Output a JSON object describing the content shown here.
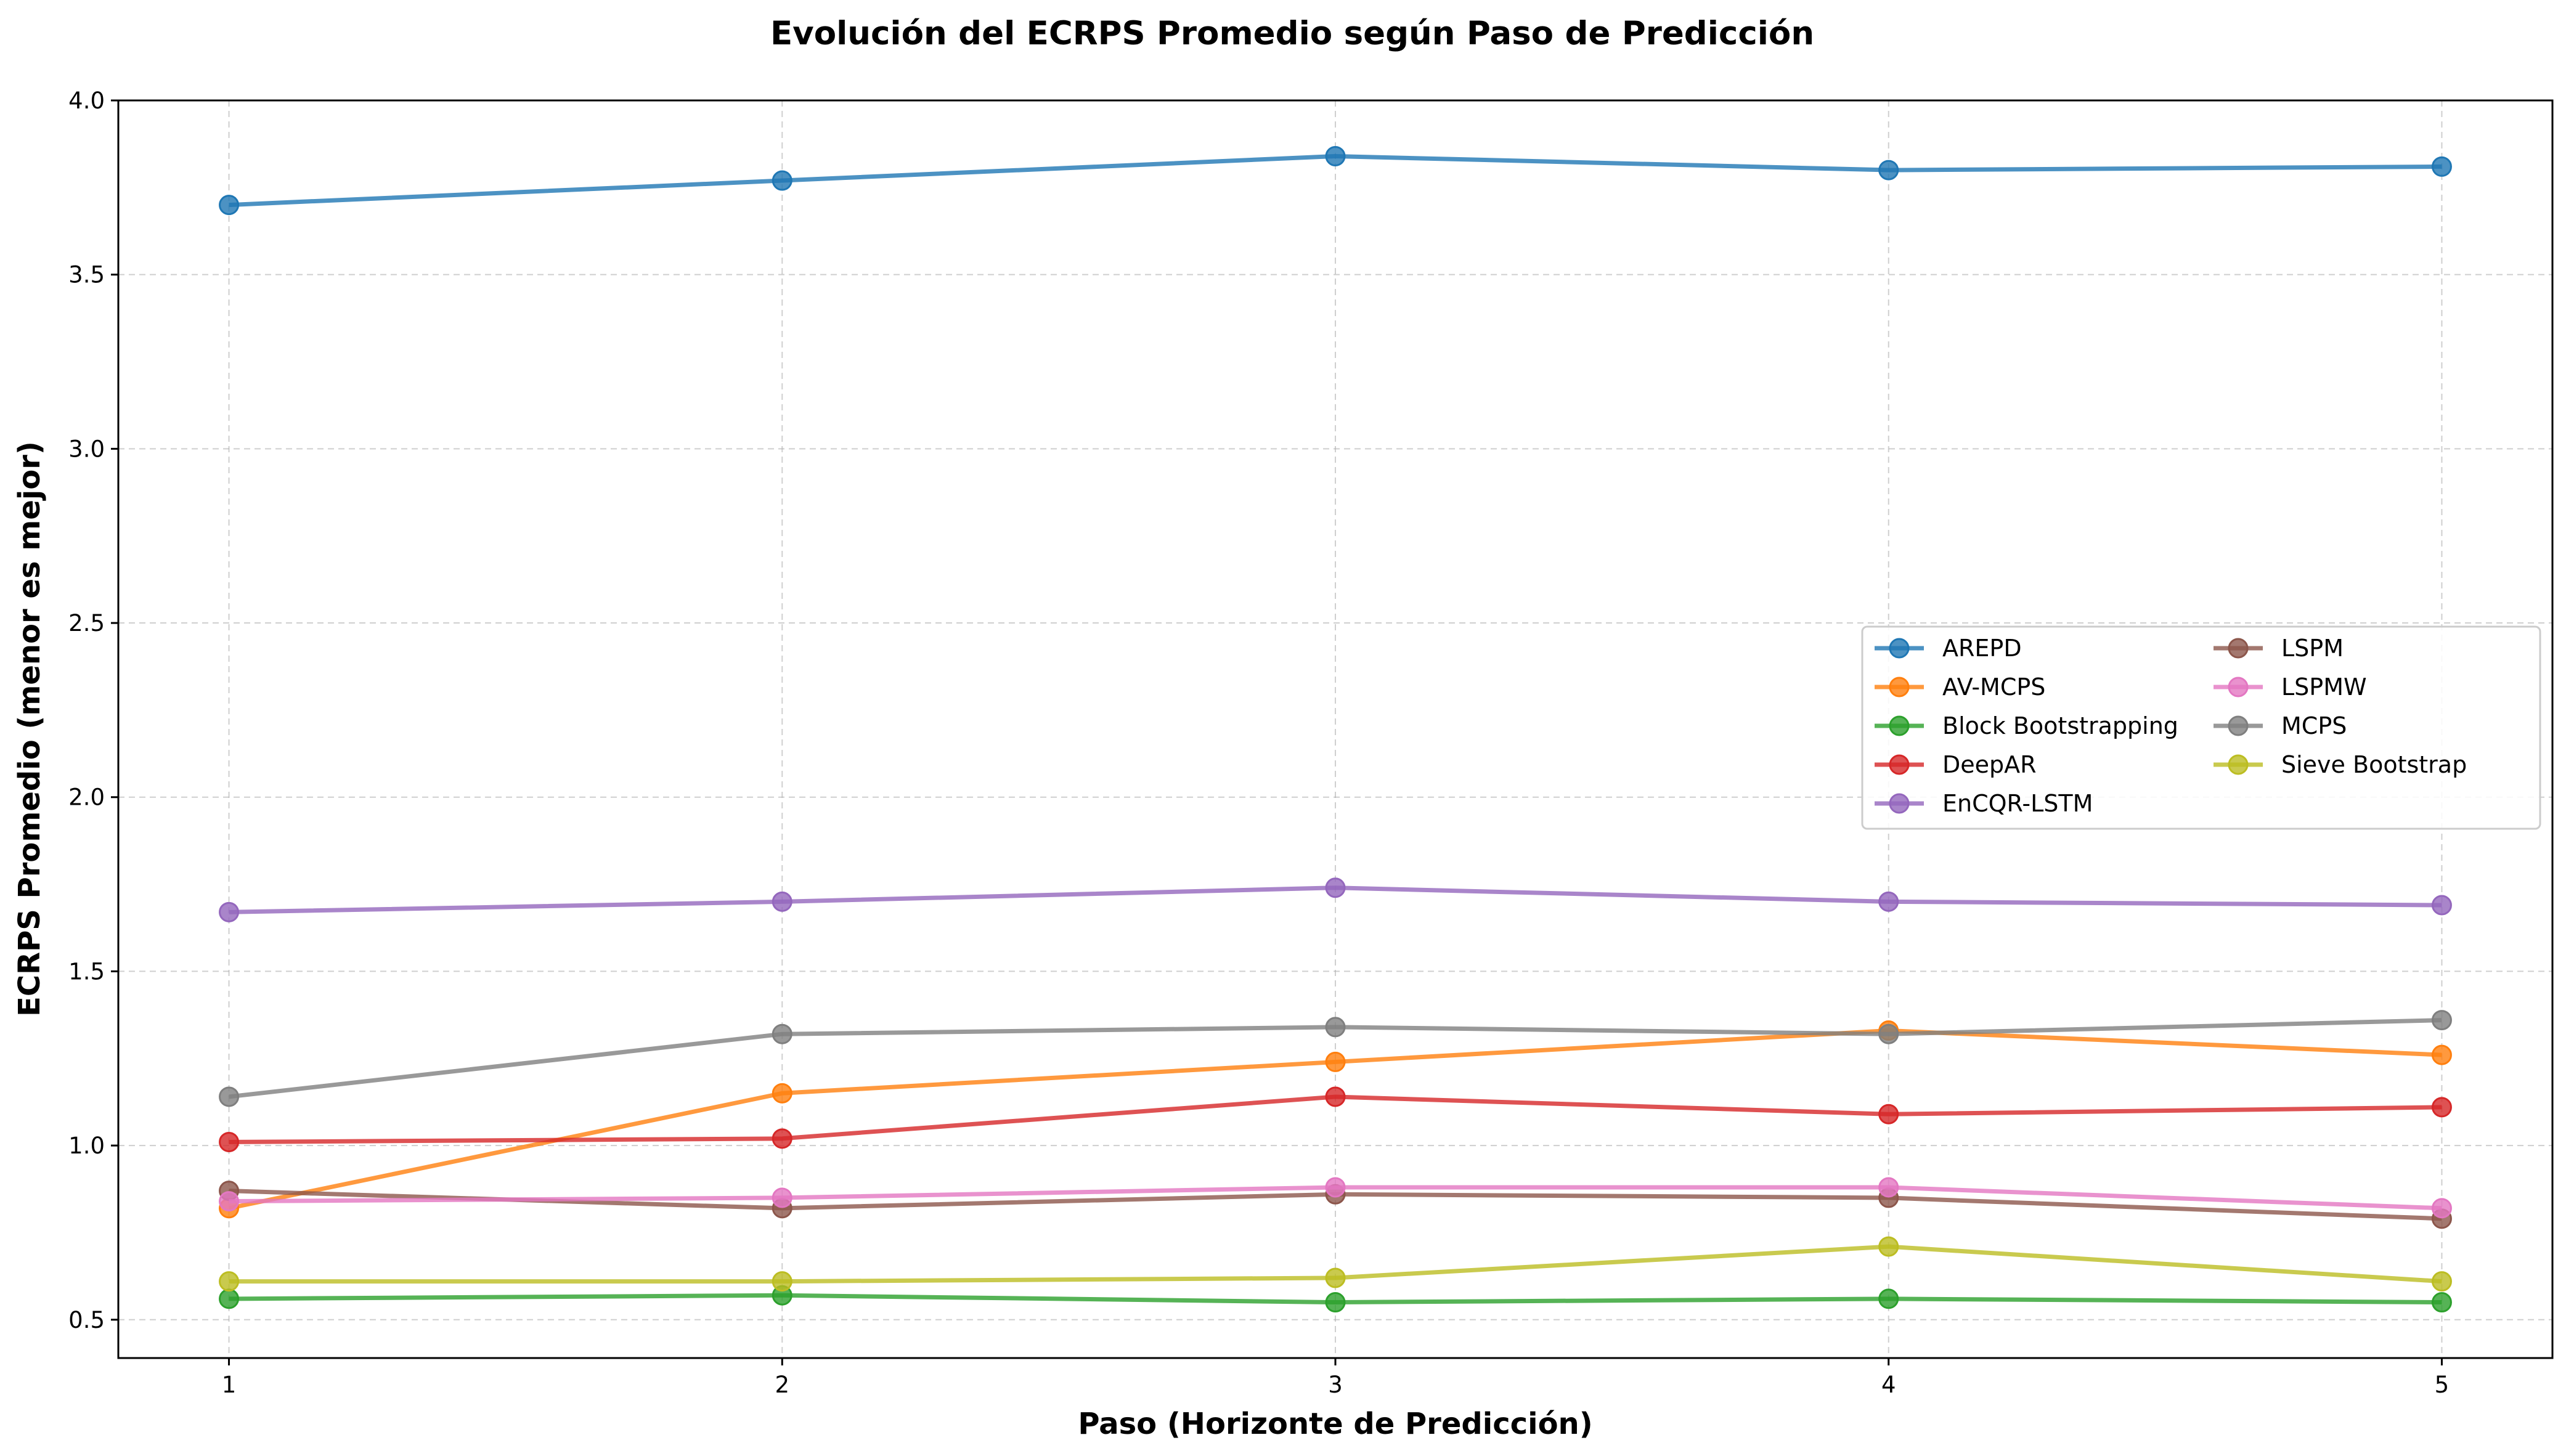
{
  "chart_data": {
    "type": "line",
    "title": "Evolución del ECRPS Promedio según Paso de Predicción",
    "xlabel": "Paso (Horizonte de Predicción)",
    "ylabel": "ECRPS Promedio (menor es mejor)",
    "x": [
      1,
      2,
      3,
      4,
      5
    ],
    "x_ticks": [
      "1",
      "2",
      "3",
      "4",
      "5"
    ],
    "xlim": [
      0.8,
      5.2
    ],
    "ylim": [
      0.39,
      4.0
    ],
    "y_ticks": [
      "0.5",
      "1.0",
      "1.5",
      "2.0",
      "2.5",
      "3.0",
      "3.5",
      "4.0"
    ],
    "grid": true,
    "legend_position": "center-right",
    "legend_columns": 2,
    "series": [
      {
        "name": "AREPD",
        "color": "#1f77b4",
        "values": [
          3.7,
          3.77,
          3.84,
          3.8,
          3.81
        ]
      },
      {
        "name": "AV-MCPS",
        "color": "#ff7f0e",
        "values": [
          0.82,
          1.15,
          1.24,
          1.33,
          1.26
        ]
      },
      {
        "name": "Block Bootstrapping",
        "color": "#2ca02c",
        "values": [
          0.56,
          0.57,
          0.55,
          0.56,
          0.55
        ]
      },
      {
        "name": "DeepAR",
        "color": "#d62728",
        "values": [
          1.01,
          1.02,
          1.14,
          1.09,
          1.11
        ]
      },
      {
        "name": "EnCQR-LSTM",
        "color": "#9467bd",
        "values": [
          1.67,
          1.7,
          1.74,
          1.7,
          1.69
        ]
      },
      {
        "name": "LSPM",
        "color": "#8c564b",
        "values": [
          0.87,
          0.82,
          0.86,
          0.85,
          0.79
        ]
      },
      {
        "name": "LSPMW",
        "color": "#e377c2",
        "values": [
          0.84,
          0.85,
          0.88,
          0.88,
          0.82
        ]
      },
      {
        "name": "MCPS",
        "color": "#7f7f7f",
        "values": [
          1.14,
          1.32,
          1.34,
          1.32,
          1.36
        ]
      },
      {
        "name": "Sieve Bootstrap",
        "color": "#bcbd22",
        "values": [
          0.61,
          0.61,
          0.62,
          0.71,
          0.61
        ]
      }
    ]
  }
}
